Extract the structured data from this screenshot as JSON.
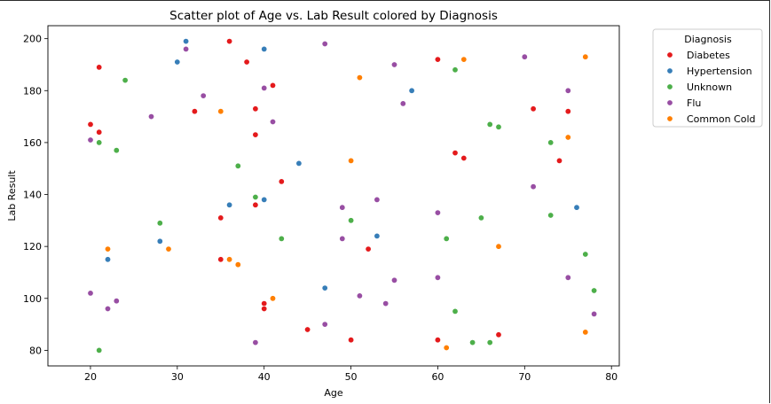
{
  "chart_data": {
    "type": "scatter",
    "title": "Scatter plot of Age vs. Lab Result colored by Diagnosis",
    "xlabel": "Age",
    "ylabel": "Lab Result",
    "xlim": [
      15.1,
      80.9
    ],
    "ylim": [
      74,
      205
    ],
    "xticks": [
      20,
      30,
      40,
      50,
      60,
      70,
      80
    ],
    "yticks": [
      80,
      100,
      120,
      140,
      160,
      180,
      200
    ],
    "grid": false,
    "legend": {
      "title": "Diagnosis",
      "placement": "outside-top-right",
      "entries": [
        "Diabetes",
        "Hypertension",
        "Unknown",
        "Flu",
        "Common Cold"
      ]
    },
    "colors": {
      "Diabetes": "#e41a1c",
      "Hypertension": "#377eb8",
      "Unknown": "#4daf4a",
      "Flu": "#984ea3",
      "Common Cold": "#ff7f00"
    },
    "series": [
      {
        "name": "Diabetes",
        "points": [
          [
            20,
            167
          ],
          [
            21,
            189
          ],
          [
            21,
            164
          ],
          [
            32,
            172
          ],
          [
            35,
            131
          ],
          [
            35,
            115
          ],
          [
            36,
            199
          ],
          [
            38,
            191
          ],
          [
            39,
            173
          ],
          [
            39,
            163
          ],
          [
            39,
            136
          ],
          [
            40,
            98
          ],
          [
            40,
            96
          ],
          [
            41,
            182
          ],
          [
            42,
            145
          ],
          [
            45,
            88
          ],
          [
            50,
            84
          ],
          [
            52,
            119
          ],
          [
            60,
            192
          ],
          [
            60,
            84
          ],
          [
            62,
            156
          ],
          [
            63,
            154
          ],
          [
            67,
            86
          ],
          [
            71,
            173
          ],
          [
            74,
            153
          ],
          [
            75,
            172
          ]
        ]
      },
      {
        "name": "Hypertension",
        "points": [
          [
            22,
            115
          ],
          [
            28,
            122
          ],
          [
            30,
            191
          ],
          [
            31,
            199
          ],
          [
            36,
            136
          ],
          [
            40,
            196
          ],
          [
            40,
            138
          ],
          [
            44,
            152
          ],
          [
            47,
            104
          ],
          [
            53,
            124
          ],
          [
            57,
            180
          ],
          [
            76,
            135
          ]
        ]
      },
      {
        "name": "Unknown",
        "points": [
          [
            21,
            160
          ],
          [
            21,
            80
          ],
          [
            23,
            157
          ],
          [
            24,
            184
          ],
          [
            28,
            129
          ],
          [
            37,
            151
          ],
          [
            39,
            139
          ],
          [
            42,
            123
          ],
          [
            50,
            130
          ],
          [
            61,
            123
          ],
          [
            62,
            188
          ],
          [
            62,
            95
          ],
          [
            64,
            83
          ],
          [
            65,
            131
          ],
          [
            66,
            167
          ],
          [
            66,
            83
          ],
          [
            67,
            166
          ],
          [
            73,
            160
          ],
          [
            73,
            132
          ],
          [
            77,
            117
          ],
          [
            78,
            103
          ]
        ]
      },
      {
        "name": "Flu",
        "points": [
          [
            20,
            161
          ],
          [
            20,
            102
          ],
          [
            22,
            96
          ],
          [
            23,
            99
          ],
          [
            27,
            170
          ],
          [
            31,
            196
          ],
          [
            33,
            178
          ],
          [
            39,
            83
          ],
          [
            40,
            181
          ],
          [
            41,
            168
          ],
          [
            47,
            198
          ],
          [
            47,
            90
          ],
          [
            49,
            135
          ],
          [
            49,
            123
          ],
          [
            51,
            101
          ],
          [
            53,
            138
          ],
          [
            54,
            98
          ],
          [
            55,
            190
          ],
          [
            55,
            107
          ],
          [
            56,
            175
          ],
          [
            60,
            133
          ],
          [
            60,
            108
          ],
          [
            70,
            193
          ],
          [
            71,
            143
          ],
          [
            75,
            180
          ],
          [
            75,
            108
          ],
          [
            78,
            94
          ]
        ]
      },
      {
        "name": "Common Cold",
        "points": [
          [
            22,
            119
          ],
          [
            29,
            119
          ],
          [
            35,
            172
          ],
          [
            36,
            115
          ],
          [
            37,
            113
          ],
          [
            41,
            100
          ],
          [
            50,
            153
          ],
          [
            51,
            185
          ],
          [
            61,
            81
          ],
          [
            63,
            192
          ],
          [
            67,
            120
          ],
          [
            75,
            162
          ],
          [
            77,
            193
          ],
          [
            77,
            87
          ]
        ]
      }
    ]
  }
}
